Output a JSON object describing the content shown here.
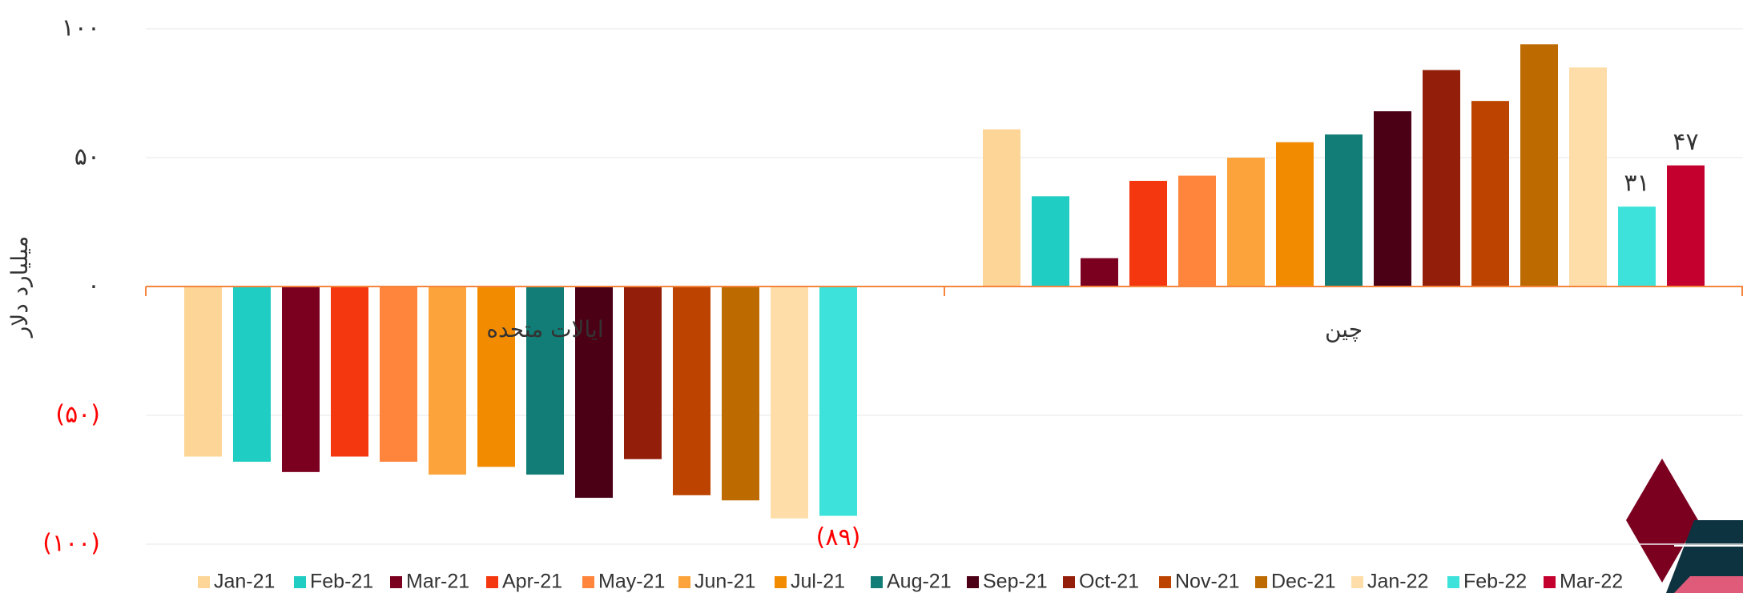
{
  "chart_data": {
    "type": "bar",
    "y_label": "میلیارد دلار",
    "categories": [
      "ایالات متحده",
      "چین"
    ],
    "ylim": [
      -100,
      100
    ],
    "yticks": [
      {
        "value": 100,
        "label": "۱۰۰"
      },
      {
        "value": 50,
        "label": "۵۰"
      },
      {
        "value": 0,
        "label": "۰"
      },
      {
        "value": -50,
        "label": "(۵۰)"
      },
      {
        "value": -100,
        "label": "(۱۰۰)"
      }
    ],
    "negative_color": "#ff0000",
    "axis_color": "#f5843c",
    "grid": true,
    "legend": "bottom",
    "series": [
      {
        "name": "Jan-21",
        "color": "#fdd597",
        "values": [
          -66,
          61
        ]
      },
      {
        "name": "Feb-21",
        "color": "#1fcdc3",
        "values": [
          -68,
          35
        ]
      },
      {
        "name": "Mar-21",
        "color": "#7b0020",
        "values": [
          -72,
          11
        ]
      },
      {
        "name": "Apr-21",
        "color": "#f5370f",
        "values": [
          -66,
          41
        ]
      },
      {
        "name": "May-21",
        "color": "#ff843c",
        "values": [
          -68,
          43
        ]
      },
      {
        "name": "Jun-21",
        "color": "#fca43b",
        "values": [
          -73,
          50
        ]
      },
      {
        "name": "Jul-21",
        "color": "#f38b00",
        "values": [
          -70,
          56
        ]
      },
      {
        "name": "Aug-21",
        "color": "#127d77",
        "values": [
          -73,
          59
        ]
      },
      {
        "name": "Sep-21",
        "color": "#4c0016",
        "values": [
          -82,
          68
        ]
      },
      {
        "name": "Oct-21",
        "color": "#931f0a",
        "values": [
          -67,
          84
        ]
      },
      {
        "name": "Nov-21",
        "color": "#bd4400",
        "values": [
          -81,
          72
        ]
      },
      {
        "name": "Dec-21",
        "color": "#bd6a00",
        "values": [
          -83,
          94
        ]
      },
      {
        "name": "Jan-22",
        "color": "#fedda8",
        "values": [
          -90,
          85
        ]
      },
      {
        "name": "Feb-22",
        "color": "#3de3da",
        "values": [
          -89,
          31
        ],
        "value_labels": [
          "(۸۹)",
          "۳۱"
        ]
      },
      {
        "name": "Mar-22",
        "color": "#c4002f",
        "values": [
          null,
          47
        ],
        "value_labels": [
          null,
          "۴۷"
        ]
      }
    ]
  }
}
